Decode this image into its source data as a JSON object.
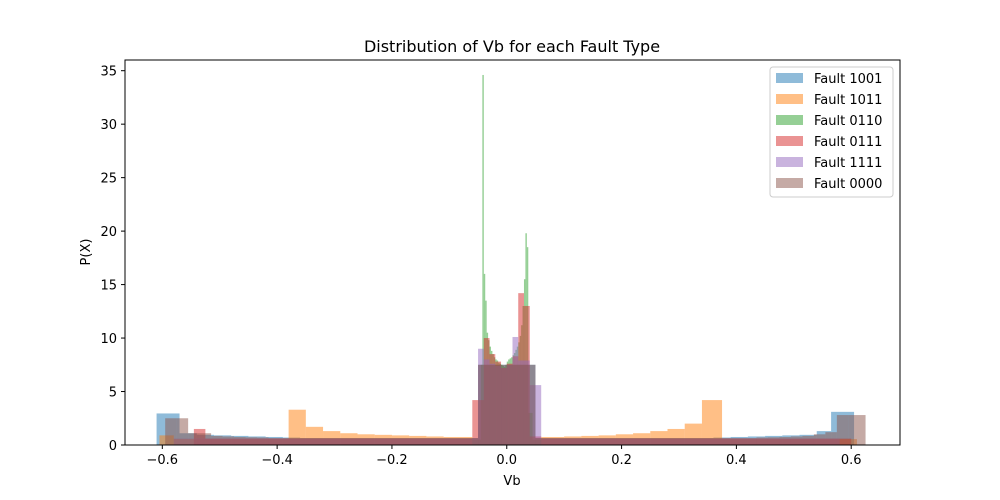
{
  "chart_data": {
    "type": "histogram",
    "title": "Distribution of Vb for each Fault Type",
    "xlabel": "Vb",
    "ylabel": "P(X)",
    "xlim": [
      -0.665,
      0.685
    ],
    "ylim": [
      0,
      36
    ],
    "xticks": [
      -0.6,
      -0.4,
      -0.2,
      0.0,
      0.2,
      0.4,
      0.6
    ],
    "xtick_labels": [
      "−0.6",
      "−0.4",
      "−0.2",
      "0.0",
      "0.2",
      "0.4",
      "0.6"
    ],
    "yticks": [
      0,
      5,
      10,
      15,
      20,
      25,
      30,
      35
    ],
    "ytick_labels": [
      "0",
      "5",
      "10",
      "15",
      "20",
      "25",
      "30",
      "35"
    ],
    "legend_position": "top-right",
    "grid": false,
    "opacity": 0.5,
    "series": [
      {
        "name": "Fault 1001",
        "color": "#1f77b4",
        "bins": [
          {
            "x0": -0.61,
            "x1": -0.57,
            "v": 2.95
          },
          {
            "x0": -0.57,
            "x1": -0.54,
            "v": 1.1
          },
          {
            "x0": -0.54,
            "x1": -0.51,
            "v": 0.95
          },
          {
            "x0": -0.51,
            "x1": -0.48,
            "v": 0.9
          },
          {
            "x0": -0.48,
            "x1": -0.45,
            "v": 0.85
          },
          {
            "x0": -0.45,
            "x1": -0.42,
            "v": 0.8
          },
          {
            "x0": -0.42,
            "x1": -0.39,
            "v": 0.75
          },
          {
            "x0": -0.39,
            "x1": -0.36,
            "v": 0.7
          },
          {
            "x0": -0.36,
            "x1": -0.05,
            "v": 0.65
          },
          {
            "x0": -0.05,
            "x1": 0.05,
            "v": 7.5
          },
          {
            "x0": 0.05,
            "x1": 0.36,
            "v": 0.65
          },
          {
            "x0": 0.36,
            "x1": 0.39,
            "v": 0.7
          },
          {
            "x0": 0.39,
            "x1": 0.42,
            "v": 0.75
          },
          {
            "x0": 0.42,
            "x1": 0.45,
            "v": 0.8
          },
          {
            "x0": 0.45,
            "x1": 0.48,
            "v": 0.85
          },
          {
            "x0": 0.48,
            "x1": 0.51,
            "v": 0.9
          },
          {
            "x0": 0.51,
            "x1": 0.54,
            "v": 0.95
          },
          {
            "x0": 0.54,
            "x1": 0.565,
            "v": 1.3
          },
          {
            "x0": 0.565,
            "x1": 0.605,
            "v": 3.1
          }
        ]
      },
      {
        "name": "Fault 1011",
        "color": "#ff7f0e",
        "bins": [
          {
            "x0": -0.605,
            "x1": -0.58,
            "v": 0.9
          },
          {
            "x0": -0.58,
            "x1": -0.38,
            "v": 0.55
          },
          {
            "x0": -0.38,
            "x1": -0.35,
            "v": 3.3
          },
          {
            "x0": -0.35,
            "x1": -0.32,
            "v": 1.7
          },
          {
            "x0": -0.32,
            "x1": -0.29,
            "v": 1.3
          },
          {
            "x0": -0.29,
            "x1": -0.26,
            "v": 1.1
          },
          {
            "x0": -0.26,
            "x1": -0.23,
            "v": 1.0
          },
          {
            "x0": -0.23,
            "x1": -0.2,
            "v": 0.95
          },
          {
            "x0": -0.2,
            "x1": -0.17,
            "v": 0.9
          },
          {
            "x0": -0.17,
            "x1": -0.14,
            "v": 0.85
          },
          {
            "x0": -0.14,
            "x1": -0.11,
            "v": 0.8
          },
          {
            "x0": -0.11,
            "x1": -0.06,
            "v": 0.75
          },
          {
            "x0": 0.06,
            "x1": 0.1,
            "v": 0.75
          },
          {
            "x0": 0.1,
            "x1": 0.13,
            "v": 0.8
          },
          {
            "x0": 0.13,
            "x1": 0.16,
            "v": 0.85
          },
          {
            "x0": 0.16,
            "x1": 0.19,
            "v": 0.9
          },
          {
            "x0": 0.19,
            "x1": 0.22,
            "v": 1.0
          },
          {
            "x0": 0.22,
            "x1": 0.25,
            "v": 1.1
          },
          {
            "x0": 0.25,
            "x1": 0.28,
            "v": 1.3
          },
          {
            "x0": 0.28,
            "x1": 0.31,
            "v": 1.5
          },
          {
            "x0": 0.31,
            "x1": 0.34,
            "v": 2.0
          },
          {
            "x0": 0.34,
            "x1": 0.375,
            "v": 4.2
          },
          {
            "x0": 0.375,
            "x1": 0.61,
            "v": 0.55
          }
        ]
      },
      {
        "name": "Fault 0110",
        "color": "#2ca02c",
        "bins": [
          {
            "x0": -0.06,
            "x1": -0.045,
            "v": 0.5
          },
          {
            "x0": -0.045,
            "x1": -0.0425,
            "v": 7.5
          },
          {
            "x0": -0.0425,
            "x1": -0.04,
            "v": 34.6
          },
          {
            "x0": -0.04,
            "x1": -0.0375,
            "v": 16.0
          },
          {
            "x0": -0.0375,
            "x1": -0.035,
            "v": 13.5
          },
          {
            "x0": -0.035,
            "x1": -0.0325,
            "v": 10.5
          },
          {
            "x0": -0.0325,
            "x1": -0.03,
            "v": 9.8
          },
          {
            "x0": -0.03,
            "x1": -0.0275,
            "v": 9.2
          },
          {
            "x0": -0.0275,
            "x1": -0.025,
            "v": 8.8
          },
          {
            "x0": -0.025,
            "x1": -0.0225,
            "v": 8.5
          },
          {
            "x0": -0.0225,
            "x1": -0.02,
            "v": 8.2
          },
          {
            "x0": -0.02,
            "x1": -0.0175,
            "v": 8.0
          },
          {
            "x0": -0.0175,
            "x1": -0.015,
            "v": 7.9
          },
          {
            "x0": -0.015,
            "x1": -0.0125,
            "v": 7.7
          },
          {
            "x0": -0.0125,
            "x1": -0.01,
            "v": 7.6
          },
          {
            "x0": -0.01,
            "x1": -0.0075,
            "v": 7.5
          },
          {
            "x0": -0.0075,
            "x1": -0.005,
            "v": 7.4
          },
          {
            "x0": -0.005,
            "x1": -0.0025,
            "v": 7.3
          },
          {
            "x0": -0.0025,
            "x1": 0.0,
            "v": 7.5
          },
          {
            "x0": 0.0,
            "x1": 0.0025,
            "v": 7.8
          },
          {
            "x0": 0.0025,
            "x1": 0.005,
            "v": 8.0
          },
          {
            "x0": 0.005,
            "x1": 0.0075,
            "v": 8.1
          },
          {
            "x0": 0.0075,
            "x1": 0.01,
            "v": 8.2
          },
          {
            "x0": 0.01,
            "x1": 0.0125,
            "v": 8.4
          },
          {
            "x0": 0.0125,
            "x1": 0.015,
            "v": 8.6
          },
          {
            "x0": 0.015,
            "x1": 0.0175,
            "v": 8.9
          },
          {
            "x0": 0.0175,
            "x1": 0.02,
            "v": 9.2
          },
          {
            "x0": 0.02,
            "x1": 0.0225,
            "v": 9.6
          },
          {
            "x0": 0.0225,
            "x1": 0.025,
            "v": 10.2
          },
          {
            "x0": 0.025,
            "x1": 0.0275,
            "v": 11.2
          },
          {
            "x0": 0.0275,
            "x1": 0.03,
            "v": 13.0
          },
          {
            "x0": 0.03,
            "x1": 0.0325,
            "v": 15.5
          },
          {
            "x0": 0.0325,
            "x1": 0.035,
            "v": 19.8
          },
          {
            "x0": 0.035,
            "x1": 0.0375,
            "v": 18.5
          },
          {
            "x0": 0.0375,
            "x1": 0.045,
            "v": 3.0
          },
          {
            "x0": 0.045,
            "x1": 0.06,
            "v": 0.5
          }
        ]
      },
      {
        "name": "Fault 0111",
        "color": "#d62728",
        "bins": [
          {
            "x0": -0.545,
            "x1": -0.525,
            "v": 1.5
          },
          {
            "x0": -0.525,
            "x1": -0.06,
            "v": 0.6
          },
          {
            "x0": -0.06,
            "x1": -0.04,
            "v": 4.2
          },
          {
            "x0": -0.04,
            "x1": -0.03,
            "v": 10.0
          },
          {
            "x0": -0.03,
            "x1": -0.02,
            "v": 8.5
          },
          {
            "x0": -0.02,
            "x1": -0.01,
            "v": 7.8
          },
          {
            "x0": -0.01,
            "x1": 0.0,
            "v": 7.2
          },
          {
            "x0": 0.0,
            "x1": 0.01,
            "v": 7.6
          },
          {
            "x0": 0.01,
            "x1": 0.02,
            "v": 8.3
          },
          {
            "x0": 0.02,
            "x1": 0.03,
            "v": 14.2
          },
          {
            "x0": 0.03,
            "x1": 0.04,
            "v": 13.0
          },
          {
            "x0": 0.04,
            "x1": 0.06,
            "v": 0.8
          },
          {
            "x0": 0.06,
            "x1": 0.6,
            "v": 0.6
          }
        ]
      },
      {
        "name": "Fault 1111",
        "color": "#9467bd",
        "bins": [
          {
            "x0": -0.58,
            "x1": -0.05,
            "v": 0.6
          },
          {
            "x0": -0.05,
            "x1": -0.04,
            "v": 9.0
          },
          {
            "x0": -0.04,
            "x1": -0.03,
            "v": 8.0
          },
          {
            "x0": -0.03,
            "x1": -0.02,
            "v": 7.6
          },
          {
            "x0": -0.02,
            "x1": -0.01,
            "v": 7.4
          },
          {
            "x0": -0.01,
            "x1": 0.0,
            "v": 7.2
          },
          {
            "x0": 0.0,
            "x1": 0.01,
            "v": 7.5
          },
          {
            "x0": 0.01,
            "x1": 0.02,
            "v": 10.1
          },
          {
            "x0": 0.02,
            "x1": 0.04,
            "v": 7.9
          },
          {
            "x0": 0.04,
            "x1": 0.06,
            "v": 5.6
          },
          {
            "x0": 0.06,
            "x1": 0.58,
            "v": 0.6
          }
        ]
      },
      {
        "name": "Fault 0000",
        "color": "#8c564b",
        "bins": [
          {
            "x0": -0.595,
            "x1": -0.575,
            "v": 2.5
          },
          {
            "x0": -0.575,
            "x1": -0.555,
            "v": 2.5
          },
          {
            "x0": -0.555,
            "x1": -0.535,
            "v": 1.1
          },
          {
            "x0": -0.535,
            "x1": -0.515,
            "v": 1.1
          },
          {
            "x0": -0.515,
            "x1": -0.495,
            "v": 0.85
          },
          {
            "x0": -0.495,
            "x1": -0.475,
            "v": 0.8
          },
          {
            "x0": -0.475,
            "x1": -0.455,
            "v": 0.75
          },
          {
            "x0": -0.455,
            "x1": -0.435,
            "v": 0.72
          },
          {
            "x0": -0.435,
            "x1": -0.415,
            "v": 0.7
          },
          {
            "x0": -0.415,
            "x1": -0.05,
            "v": 0.65
          },
          {
            "x0": -0.05,
            "x1": 0.05,
            "v": 7.5
          },
          {
            "x0": 0.05,
            "x1": 0.435,
            "v": 0.65
          },
          {
            "x0": 0.435,
            "x1": 0.455,
            "v": 0.7
          },
          {
            "x0": 0.455,
            "x1": 0.475,
            "v": 0.72
          },
          {
            "x0": 0.475,
            "x1": 0.495,
            "v": 0.75
          },
          {
            "x0": 0.495,
            "x1": 0.515,
            "v": 0.8
          },
          {
            "x0": 0.515,
            "x1": 0.535,
            "v": 0.85
          },
          {
            "x0": 0.535,
            "x1": 0.555,
            "v": 1.0
          },
          {
            "x0": 0.555,
            "x1": 0.575,
            "v": 1.2
          },
          {
            "x0": 0.575,
            "x1": 0.595,
            "v": 2.8
          },
          {
            "x0": 0.595,
            "x1": 0.625,
            "v": 2.8
          }
        ]
      }
    ]
  }
}
